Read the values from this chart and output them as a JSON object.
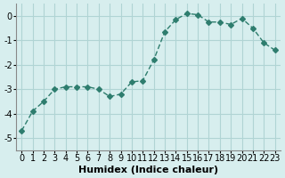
{
  "x": [
    0,
    1,
    2,
    3,
    4,
    5,
    6,
    7,
    8,
    9,
    10,
    11,
    12,
    13,
    14,
    15,
    16,
    17,
    18,
    19,
    20,
    21,
    22,
    23
  ],
  "y": [
    -4.7,
    -3.9,
    -3.5,
    -3.0,
    -2.9,
    -2.9,
    -2.9,
    -3.0,
    -3.3,
    -3.2,
    -2.7,
    -2.65,
    -1.8,
    -0.65,
    -0.15,
    0.1,
    0.05,
    -0.25,
    -0.25,
    -0.35,
    -0.1,
    -0.5,
    -1.1,
    -1.4
  ],
  "line_color": "#2e7d6e",
  "marker": "D",
  "marker_size": 3,
  "bg_color": "#d7eeee",
  "grid_color": "#b0d4d4",
  "xlabel": "Humidex (Indice chaleur)",
  "ylim": [
    -5.5,
    0.5
  ],
  "xlim": [
    -0.5,
    23.5
  ],
  "yticks": [
    0,
    -1,
    -2,
    -3,
    -4,
    -5
  ],
  "xticks": [
    0,
    1,
    2,
    3,
    4,
    5,
    6,
    7,
    8,
    9,
    10,
    11,
    12,
    13,
    14,
    15,
    16,
    17,
    18,
    19,
    20,
    21,
    22,
    23
  ],
  "xlabel_fontsize": 8,
  "tick_fontsize": 7,
  "title": ""
}
